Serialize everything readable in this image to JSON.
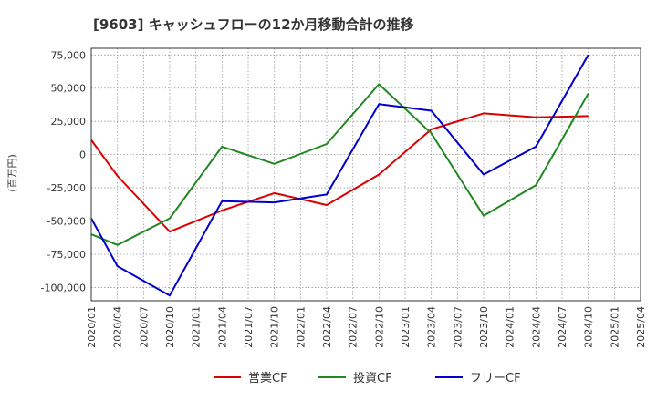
{
  "chart_data": {
    "type": "line",
    "title": "[9603]  キャッシュフローの12か月移動合計の推移",
    "ylabel": "(百万円)",
    "xlabel": "",
    "ylim": [
      -110000,
      80000
    ],
    "yticks": [
      75000,
      50000,
      25000,
      0,
      -25000,
      -50000,
      -75000,
      -100000
    ],
    "ytick_labels": [
      "75,000",
      "50,000",
      "25,000",
      "0",
      "-25,000",
      "-50,000",
      "-75,000",
      "-100,000"
    ],
    "categories": [
      "2020/01",
      "2020/04",
      "2020/07",
      "2020/10",
      "2021/01",
      "2021/04",
      "2021/07",
      "2021/10",
      "2022/01",
      "2022/04",
      "2022/07",
      "2022/10",
      "2023/01",
      "2023/04",
      "2023/07",
      "2023/10",
      "2024/01",
      "2024/04",
      "2024/07",
      "2024/10",
      "2025/01",
      "2025/04"
    ],
    "grid": true,
    "legend_position": "bottom",
    "series": [
      {
        "name": "営業CF",
        "color": "#dd0000",
        "values": [
          11000,
          -16000,
          null,
          -58000,
          null,
          -42000,
          null,
          -29000,
          null,
          -38000,
          null,
          -15000,
          null,
          19000,
          null,
          31000,
          null,
          28000,
          null,
          29000,
          null,
          null
        ]
      },
      {
        "name": "投資CF",
        "color": "#228822",
        "values": [
          -60000,
          -68000,
          null,
          -48000,
          null,
          6000,
          null,
          -7000,
          null,
          8000,
          null,
          53000,
          null,
          16000,
          null,
          -46000,
          null,
          -23000,
          null,
          46000,
          null,
          null
        ]
      },
      {
        "name": "フリーCF",
        "color": "#0000cc",
        "values": [
          -48000,
          -84000,
          null,
          -106000,
          null,
          -35000,
          null,
          -36000,
          null,
          -30000,
          null,
          38000,
          null,
          33000,
          null,
          -15000,
          null,
          6000,
          null,
          75000,
          null,
          null
        ]
      }
    ]
  }
}
